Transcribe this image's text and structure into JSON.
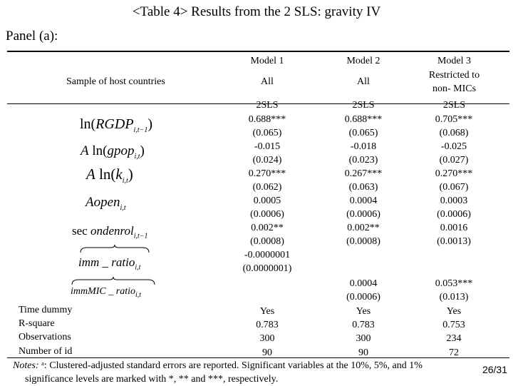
{
  "title": "<Table 4> Results from the 2 SLS: gravity IV",
  "panel": "Panel (a):",
  "header": {
    "models": [
      "Model 1",
      "Model 2",
      "Model 3"
    ],
    "sample_label": "Sample of host countries",
    "samples": [
      "All",
      "All",
      "Restricted to\nnon- MICs"
    ],
    "method": [
      "2SLS",
      "2SLS",
      "2SLS"
    ]
  },
  "columns": [
    [
      "0.688***",
      "(0.065)",
      "-0.015",
      "(0.024)",
      "0.270***",
      "(0.062)",
      "0.0005",
      "(0.0006)",
      "0.002**",
      "(0.0008)",
      "-0.0000001",
      "(0.0000001)"
    ],
    [
      "0.688***",
      "(0.065)",
      "-0.018",
      "(0.023)",
      "0.267***",
      "(0.063)",
      "0.0004",
      "(0.0006)",
      "0.002**",
      "(0.0008)"
    ],
    [
      "0.705***",
      "(0.068)",
      "-0.025",
      "(0.027)",
      "0.270***",
      "(0.067)",
      "0.0003",
      "(0.0006)",
      "0.0016",
      "(0.0013)"
    ]
  ],
  "immmic_values": [
    [
      "0.0004",
      "(0.0006)"
    ],
    [
      "0.053***",
      "(0.013)"
    ]
  ],
  "footer_rows": [
    {
      "label": "Time dummy",
      "values": [
        "Yes",
        "Yes",
        "Yes"
      ]
    },
    {
      "label": "R-square",
      "values": [
        "0.783",
        "0.783",
        "0.753"
      ]
    },
    {
      "label": "Observations",
      "values": [
        "300",
        "300",
        "234"
      ]
    },
    {
      "label": "Number of id",
      "values": [
        "90",
        "90",
        "72"
      ]
    }
  ],
  "notes": {
    "prefix": "Notes:",
    "line1": " ᵃ: Clustered-adjusted standard errors are reported. Significant variables at the 10%, 5%, and 1%",
    "line2": "significance levels are marked with *, ** and ***, respectively."
  },
  "page_number": "26/31"
}
